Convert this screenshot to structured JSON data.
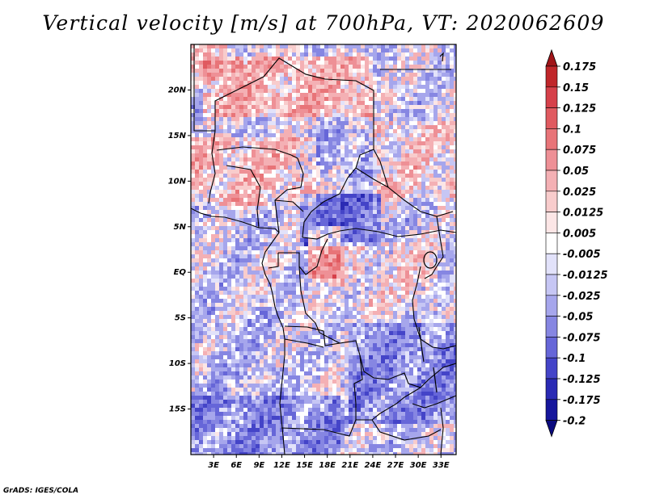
{
  "title": "Vertical velocity [m/s] at 700hPa, VT: 2020062609",
  "credit": "GrADS: IGES/COLA",
  "map": {
    "lon_range": [
      0,
      35
    ],
    "lat_range": [
      -20,
      25
    ],
    "x_ticks": [
      "3E",
      "6E",
      "9E",
      "12E",
      "15E",
      "18E",
      "21E",
      "24E",
      "27E",
      "30E",
      "33E"
    ],
    "y_ticks": [
      "20N",
      "15N",
      "10N",
      "5N",
      "EQ",
      "5S",
      "10S",
      "15S"
    ]
  },
  "colorbar": {
    "labels": [
      "0.175",
      "0.15",
      "0.125",
      "0.1",
      "0.075",
      "0.05",
      "0.025",
      "0.0125",
      "0.005",
      "-0.005",
      "-0.0125",
      "-0.025",
      "-0.05",
      "-0.075",
      "-0.1",
      "-0.125",
      "-0.175",
      "-0.2"
    ],
    "colors": [
      "#a01418",
      "#c0262a",
      "#d6404a",
      "#e05a60",
      "#e87478",
      "#ee9096",
      "#f4b0b4",
      "#f8cccc",
      "#fce6e6",
      "#ffffff",
      "#e2e2fa",
      "#c6c6f4",
      "#a6a6ec",
      "#8686e2",
      "#6666d8",
      "#4444c8",
      "#2a2ab4",
      "#16169c",
      "#0a0a7e"
    ]
  }
}
